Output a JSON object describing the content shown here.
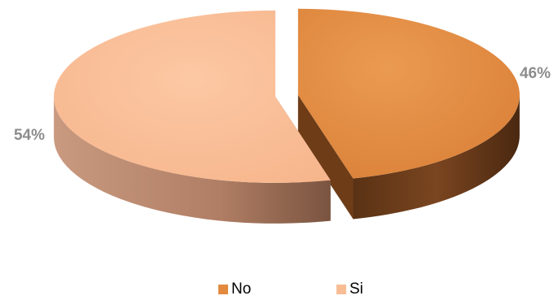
{
  "chart_data": {
    "type": "pie",
    "style": "3d-exploded",
    "slices": [
      {
        "label": "No",
        "value": 46,
        "display": "46%",
        "color": "#E38A3F",
        "side_color": "#6E3D17"
      },
      {
        "label": "Si",
        "value": 54,
        "display": "54%",
        "color": "#F9BD96",
        "side_color": "#A27360"
      }
    ],
    "legend": {
      "position": "bottom",
      "items": [
        {
          "label": "No",
          "color": "#E38A3F"
        },
        {
          "label": "Si",
          "color": "#F9BD96"
        }
      ]
    }
  }
}
